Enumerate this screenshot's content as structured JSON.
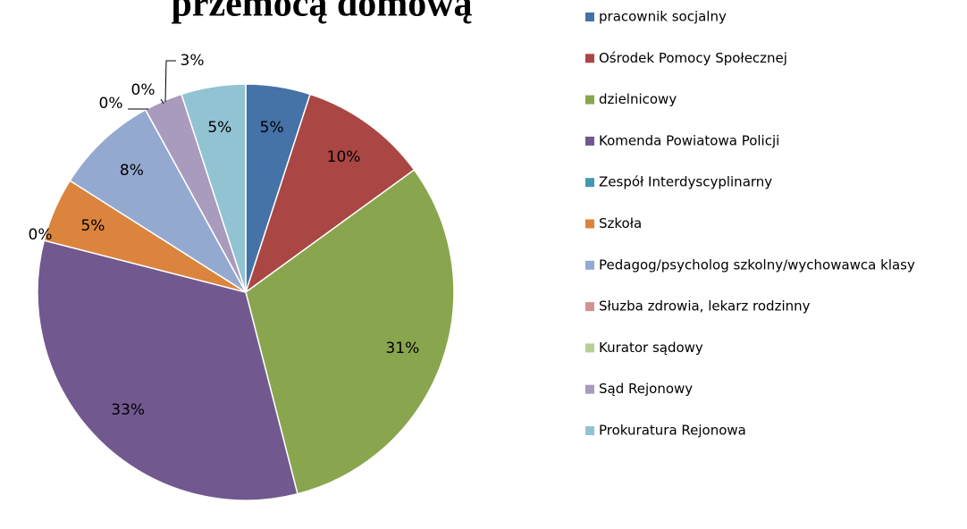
{
  "chart_data": {
    "type": "pie",
    "title": "przemocą domową",
    "categories": [
      "pracownik socjalny",
      "Ośrodek Pomocy Społecznej",
      "dzielnicowy",
      "Komenda Powiatowa Policji",
      "Zespół Interdyscyplinarny",
      "Szkoła",
      "Pedagog/psycholog szkolny/wychowawca klasy",
      "Słuzba zdrowia, lekarz rodzinny",
      "Kurator sądowy",
      "Sąd Rejonowy",
      "Prokuratura Rejonowa"
    ],
    "values": [
      5,
      10,
      31,
      33,
      0,
      5,
      8,
      0,
      0,
      3,
      5
    ],
    "value_labels": [
      "5%",
      "10%",
      "31%",
      "33%",
      "0%",
      "5%",
      "8%",
      "0%",
      "0%",
      "3%",
      "5%"
    ],
    "colors": [
      "#4572a7",
      "#aa4643",
      "#89a54e",
      "#71588f",
      "#4198af",
      "#db843d",
      "#93a9cf",
      "#d19392",
      "#b9cd96",
      "#a99bbd",
      "#92c3d3"
    ],
    "legend": "right"
  }
}
